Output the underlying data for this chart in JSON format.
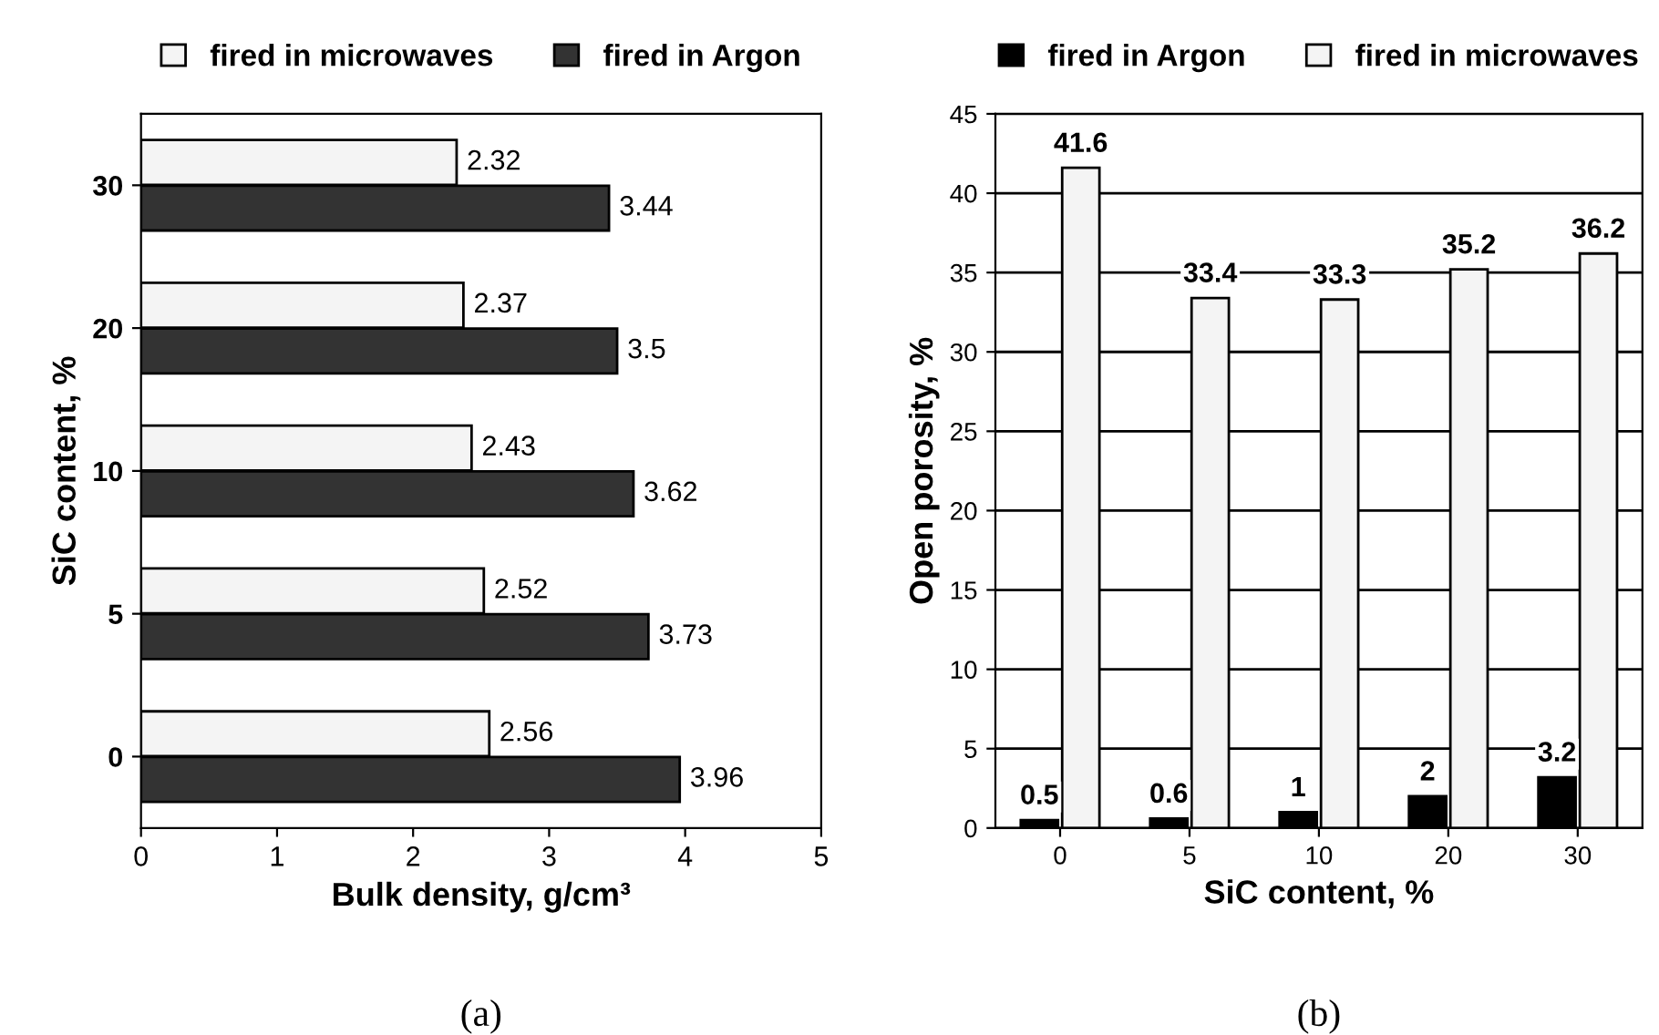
{
  "chart_data": [
    {
      "type": "bar",
      "orientation": "horizontal",
      "categories": [
        "30",
        "20",
        "10",
        "5",
        "0"
      ],
      "xlabel": "Bulk density, g/cm³",
      "ylabel": "SiC content, %",
      "xlim": [
        0,
        5
      ],
      "xticks": [
        0,
        1,
        2,
        3,
        4,
        5
      ],
      "grid": false,
      "legend": "top",
      "data_labels": true,
      "annotations": [
        "(a)"
      ],
      "series": [
        {
          "name": "fired in microwaves",
          "color": "#f4f4f4",
          "values": [
            2.32,
            2.37,
            2.43,
            2.52,
            2.56
          ]
        },
        {
          "name": "fired in Argon",
          "color": "#333333",
          "values": [
            3.44,
            3.5,
            3.62,
            3.73,
            3.96
          ]
        }
      ]
    },
    {
      "type": "bar",
      "categories": [
        "0",
        "5",
        "10",
        "20",
        "30"
      ],
      "xlabel": "SiC content, %",
      "ylabel": "Open porosity, %",
      "ylim": [
        0,
        45
      ],
      "yticks": [
        0,
        5,
        10,
        15,
        20,
        25,
        30,
        35,
        40,
        45
      ],
      "grid": "y",
      "legend": "top",
      "data_labels": true,
      "annotations": [
        "(b)"
      ],
      "series": [
        {
          "name": "fired in Argon",
          "color": "#000000",
          "values": [
            0.5,
            0.6,
            1,
            2,
            3.2
          ]
        },
        {
          "name": "fired in microwaves",
          "color": "#f4f4f4",
          "values": [
            41.6,
            33.4,
            33.3,
            35.2,
            36.2
          ]
        }
      ]
    }
  ]
}
